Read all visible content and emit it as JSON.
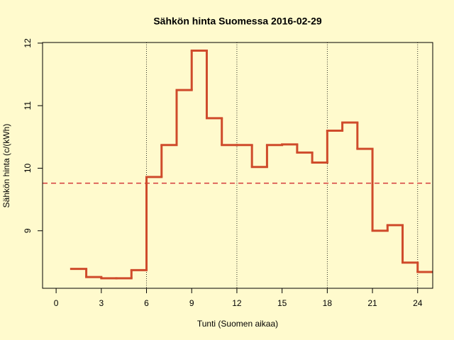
{
  "chart_data": {
    "type": "step",
    "title": "Sähkön hinta Suomessa 2016-02-29",
    "x_label": "Tunti (Suomen aikaa)",
    "y_label": "Sähkön hinta (c/(kWh)",
    "x": [
      1,
      2,
      3,
      4,
      5,
      6,
      7,
      8,
      9,
      10,
      11,
      12,
      13,
      14,
      15,
      16,
      17,
      18,
      19,
      20,
      21,
      22,
      23,
      24
    ],
    "values": [
      8.39,
      8.26,
      8.24,
      8.24,
      8.37,
      9.86,
      10.37,
      11.25,
      11.88,
      10.8,
      10.37,
      10.37,
      10.02,
      10.37,
      10.38,
      10.25,
      10.09,
      10.6,
      10.73,
      10.31,
      9.0,
      9.09,
      8.49,
      8.34
    ],
    "color": "#cf4b2b",
    "reference_line": 9.76,
    "reference_color": "#d43a3a",
    "vlines": [
      6,
      12,
      18,
      24
    ],
    "xlim": [
      -0.9,
      25
    ],
    "ylim": [
      8.08,
      12.01
    ],
    "xticks": [
      0,
      3,
      6,
      9,
      12,
      15,
      18,
      21,
      24
    ],
    "yticks": [
      9,
      10,
      11,
      12
    ]
  }
}
